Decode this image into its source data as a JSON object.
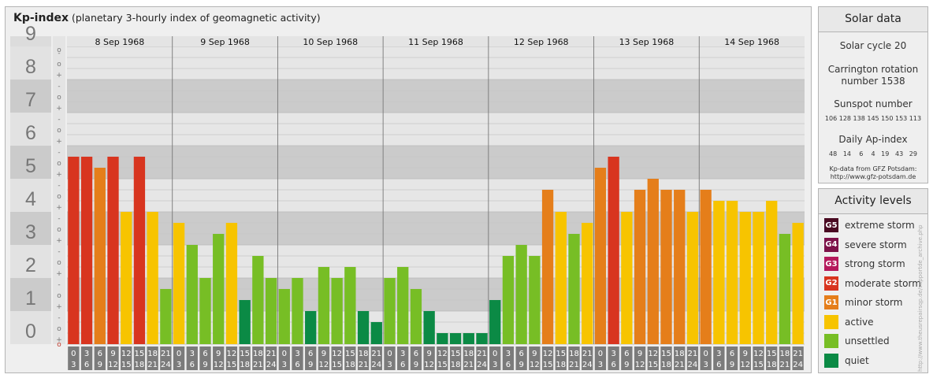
{
  "header": {
    "title": "Kp-index",
    "subtitle": "(planetary 3-hourly index of geomagnetic activity)"
  },
  "colors": {
    "quiet": "#0b8a45",
    "unsettled": "#77be25",
    "active": "#f7c400",
    "minor_storm": "#e57e1a",
    "moderate_storm": "#d8351f"
  },
  "chart_data": {
    "type": "bar",
    "ylim": [
      0,
      9
    ],
    "y_ticks": [
      "0",
      "1",
      "2",
      "3",
      "4",
      "5",
      "6",
      "7",
      "8",
      "9"
    ],
    "sub_ticks": [
      "+",
      "o",
      "-"
    ],
    "days": [
      "8 Sep 1968",
      "9 Sep 1968",
      "10 Sep 1968",
      "11 Sep 1968",
      "12 Sep 1968",
      "13 Sep 1968",
      "14 Sep 1968"
    ],
    "hour_start": [
      "0",
      "3",
      "6",
      "9",
      "12",
      "15",
      "18",
      "21"
    ],
    "hour_end": [
      "3",
      "6",
      "9",
      "12",
      "15",
      "18",
      "21",
      "24"
    ],
    "series": [
      {
        "values": [
          5.667,
          5.667,
          5.333,
          5.667,
          4.0,
          5.667,
          4.0,
          1.667,
          3.667,
          3.0,
          2.0,
          3.333,
          3.667,
          1.333,
          2.667,
          2.0,
          1.667,
          2.0,
          1.0,
          2.333,
          2.0,
          2.333,
          1.0,
          0.667,
          2.0,
          2.333,
          1.667,
          1.0,
          0.333,
          0.333,
          0.333,
          0.333,
          1.333,
          2.667,
          3.0,
          2.667,
          4.667,
          4.0,
          3.333,
          3.667,
          5.333,
          5.667,
          4.0,
          4.667,
          5.0,
          4.667,
          4.667,
          4.0,
          4.667,
          4.333,
          4.333,
          4.0,
          4.0,
          4.333,
          3.333,
          3.667
        ],
        "colors": [
          "moderate_storm",
          "moderate_storm",
          "minor_storm",
          "moderate_storm",
          "active",
          "moderate_storm",
          "active",
          "unsettled",
          "active",
          "unsettled",
          "unsettled",
          "unsettled",
          "active",
          "quiet",
          "unsettled",
          "unsettled",
          "unsettled",
          "unsettled",
          "quiet",
          "unsettled",
          "unsettled",
          "unsettled",
          "quiet",
          "quiet",
          "unsettled",
          "unsettled",
          "unsettled",
          "quiet",
          "quiet",
          "quiet",
          "quiet",
          "quiet",
          "quiet",
          "unsettled",
          "unsettled",
          "unsettled",
          "minor_storm",
          "active",
          "unsettled",
          "active",
          "minor_storm",
          "moderate_storm",
          "active",
          "minor_storm",
          "minor_storm",
          "minor_storm",
          "minor_storm",
          "active",
          "minor_storm",
          "active",
          "active",
          "active",
          "active",
          "active",
          "unsettled",
          "active"
        ]
      }
    ]
  },
  "solar": {
    "title": "Solar data",
    "cycle": "Solar cycle 20",
    "carrington_1": "Carrington rotation",
    "carrington_2": "number 1538",
    "sunspot_label": "Sunspot number",
    "sunspot_values": "106 128 138 145 150 153 113",
    "ap_label": "Daily Ap-index",
    "ap_values": "48   14    6    4   19   43   29",
    "source_1": "Kp-data from GFZ Potsdam:",
    "source_2": "http://www.gfz-potsdam.de"
  },
  "activity": {
    "title": "Activity levels",
    "items": [
      {
        "code": "G5",
        "label": "extreme storm",
        "color": "#4a0a22"
      },
      {
        "code": "G4",
        "label": "severe storm",
        "color": "#7d1249"
      },
      {
        "code": "G3",
        "label": "strong storm",
        "color": "#b5195c"
      },
      {
        "code": "G2",
        "label": "moderate storm",
        "color": "#d8351f"
      },
      {
        "code": "G1",
        "label": "minor storm",
        "color": "#e57e1a"
      },
      {
        "code": "",
        "label": "active",
        "color": "#f7c400"
      },
      {
        "code": "",
        "label": "unsettled",
        "color": "#77be25"
      },
      {
        "code": "",
        "label": "quiet",
        "color": "#0b8a45"
      }
    ]
  },
  "side_note": "http://www.theusrepairsqp.de/supportde_archive.php"
}
